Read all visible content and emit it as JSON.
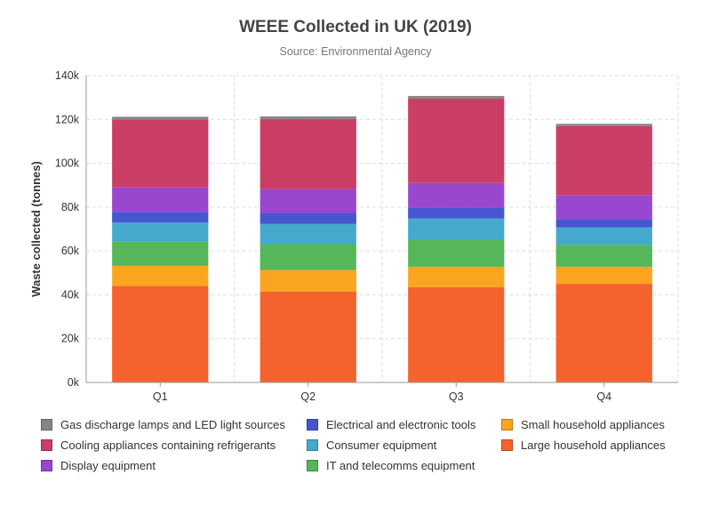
{
  "title": "WEEE Collected in UK (2019)",
  "subtitle": "Source: Environmental Agency",
  "chart_data": {
    "type": "bar",
    "stacked": true,
    "title": "WEEE Collected in UK (2019)",
    "subtitle": "Source: Environmental Agency",
    "xlabel": "",
    "ylabel": "Waste collected (tonnes)",
    "categories": [
      "Q1",
      "Q2",
      "Q3",
      "Q4"
    ],
    "ylim": [
      0,
      140000
    ],
    "yticks": [
      0,
      20000,
      40000,
      60000,
      80000,
      100000,
      120000,
      140000
    ],
    "ytick_labels": [
      "0k",
      "20k",
      "40k",
      "60k",
      "80k",
      "100k",
      "120k",
      "140k"
    ],
    "grid": true,
    "legend_position": "bottom",
    "series": [
      {
        "name": "Large household appliances",
        "color": "#f4622d",
        "values": [
          44000,
          41500,
          43500,
          45000
        ]
      },
      {
        "name": "Small household appliances",
        "color": "#fba420",
        "values": [
          9200,
          9800,
          9300,
          7800
        ]
      },
      {
        "name": "IT and telecomms equipment",
        "color": "#55b65a",
        "values": [
          11000,
          11800,
          12500,
          10000
        ]
      },
      {
        "name": "Consumer equipment",
        "color": "#44a9cd",
        "values": [
          8800,
          9200,
          9500,
          7900
        ]
      },
      {
        "name": "Electrical and electronic tools",
        "color": "#4656ce",
        "values": [
          4800,
          5000,
          5000,
          3800
        ]
      },
      {
        "name": "Display equipment",
        "color": "#9a47cf",
        "values": [
          11200,
          10900,
          11200,
          11000
        ]
      },
      {
        "name": "Cooling appliances containing refrigerants",
        "color": "#cb3e66",
        "values": [
          31000,
          32000,
          38500,
          31500
        ]
      },
      {
        "name": "Gas discharge lamps and LED light sources",
        "color": "#858585",
        "values": [
          1200,
          1200,
          1200,
          1000
        ]
      }
    ],
    "legend_order": [
      "Gas discharge lamps and LED light sources",
      "Electrical and electronic tools",
      "Small household appliances",
      "Cooling appliances containing refrigerants",
      "Consumer equipment",
      "Large household appliances",
      "Display equipment",
      "IT and telecomms equipment"
    ]
  }
}
